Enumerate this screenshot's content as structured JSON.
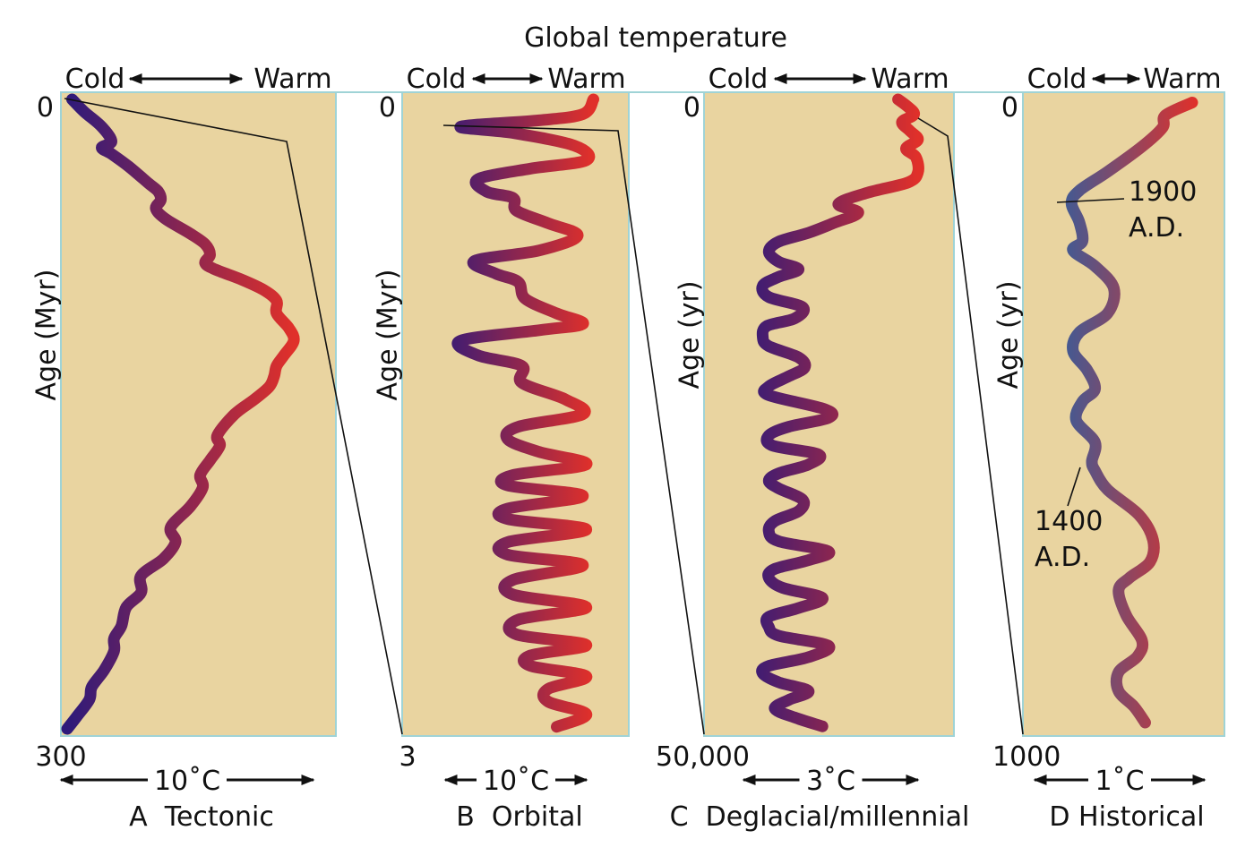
{
  "title": "Global temperature",
  "colors": {
    "panel_bg": "#E9D4A0",
    "panel_border": "#9FD3D6",
    "cold": "#2E1A7A",
    "warm": "#E0302A",
    "historical_cold": "#2F5FA0"
  },
  "chart_data": [
    {
      "type": "line",
      "panel": "A",
      "caption": "A  Tectonic",
      "cold_label": "Cold",
      "warm_label": "Warm",
      "scale_label": "10˚C",
      "ylabel": "Age (Myr)",
      "y_top_label": "0",
      "y_bottom_label": "300",
      "ylim": [
        0,
        300
      ],
      "x_range": "cold (0) to warm (1)",
      "points": [
        [
          0.02,
          0
        ],
        [
          0.07,
          6
        ],
        [
          0.14,
          13
        ],
        [
          0.18,
          20
        ],
        [
          0.14,
          23
        ],
        [
          0.18,
          26
        ],
        [
          0.25,
          32
        ],
        [
          0.33,
          40
        ],
        [
          0.37,
          44
        ],
        [
          0.38,
          48
        ],
        [
          0.36,
          52
        ],
        [
          0.4,
          57
        ],
        [
          0.5,
          64
        ],
        [
          0.56,
          69
        ],
        [
          0.58,
          74
        ],
        [
          0.56,
          78
        ],
        [
          0.6,
          81
        ],
        [
          0.71,
          86
        ],
        [
          0.8,
          91
        ],
        [
          0.85,
          96
        ],
        [
          0.85,
          102
        ],
        [
          0.9,
          109
        ],
        [
          0.92,
          115
        ],
        [
          0.88,
          122
        ],
        [
          0.85,
          127
        ],
        [
          0.84,
          132
        ],
        [
          0.82,
          137
        ],
        [
          0.76,
          143
        ],
        [
          0.68,
          150
        ],
        [
          0.61,
          160
        ],
        [
          0.62,
          165
        ],
        [
          0.58,
          172
        ],
        [
          0.54,
          179
        ],
        [
          0.55,
          185
        ],
        [
          0.5,
          194
        ],
        [
          0.42,
          204
        ],
        [
          0.44,
          211
        ],
        [
          0.39,
          219
        ],
        [
          0.3,
          227
        ],
        [
          0.3,
          235
        ],
        [
          0.24,
          242
        ],
        [
          0.22,
          251
        ],
        [
          0.19,
          257
        ],
        [
          0.19,
          263
        ],
        [
          0.15,
          272
        ],
        [
          0.1,
          280
        ],
        [
          0.09,
          286
        ],
        [
          0.04,
          294
        ],
        [
          0.0,
          300
        ]
      ]
    },
    {
      "type": "line",
      "panel": "B",
      "caption": "B  Orbital",
      "cold_label": "Cold",
      "warm_label": "Warm",
      "scale_label": "10˚C",
      "ylabel": "Age (Myr)",
      "y_top_label": "0",
      "y_bottom_label": "3",
      "ylim": [
        0,
        3
      ],
      "x_range": "cold (0) to warm (1)",
      "points": [
        [
          0.91,
          0
        ],
        [
          0.85,
          0.07
        ],
        [
          0.6,
          0.1
        ],
        [
          0.15,
          0.13
        ],
        [
          0.45,
          0.16
        ],
        [
          0.8,
          0.22
        ],
        [
          0.87,
          0.29
        ],
        [
          0.55,
          0.33
        ],
        [
          0.25,
          0.38
        ],
        [
          0.3,
          0.44
        ],
        [
          0.45,
          0.47
        ],
        [
          0.47,
          0.53
        ],
        [
          0.65,
          0.59
        ],
        [
          0.82,
          0.65
        ],
        [
          0.6,
          0.72
        ],
        [
          0.23,
          0.77
        ],
        [
          0.35,
          0.83
        ],
        [
          0.48,
          0.87
        ],
        [
          0.52,
          0.95
        ],
        [
          0.7,
          1.02
        ],
        [
          0.85,
          1.07
        ],
        [
          0.6,
          1.1
        ],
        [
          0.15,
          1.15
        ],
        [
          0.25,
          1.22
        ],
        [
          0.5,
          1.27
        ],
        [
          0.5,
          1.35
        ],
        [
          0.75,
          1.43
        ],
        [
          0.85,
          1.5
        ],
        [
          0.48,
          1.56
        ],
        [
          0.42,
          1.62
        ],
        [
          0.6,
          1.68
        ],
        [
          0.87,
          1.74
        ],
        [
          0.45,
          1.79
        ],
        [
          0.42,
          1.84
        ],
        [
          0.85,
          1.89
        ],
        [
          0.42,
          1.95
        ],
        [
          0.42,
          2.0
        ],
        [
          0.87,
          2.05
        ],
        [
          0.42,
          2.11
        ],
        [
          0.42,
          2.17
        ],
        [
          0.85,
          2.22
        ],
        [
          0.45,
          2.29
        ],
        [
          0.45,
          2.36
        ],
        [
          0.87,
          2.42
        ],
        [
          0.48,
          2.48
        ],
        [
          0.47,
          2.55
        ],
        [
          0.87,
          2.6
        ],
        [
          0.55,
          2.65
        ],
        [
          0.55,
          2.7
        ],
        [
          0.87,
          2.75
        ],
        [
          0.65,
          2.81
        ],
        [
          0.65,
          2.87
        ],
        [
          0.87,
          2.93
        ],
        [
          0.7,
          2.99
        ]
      ]
    },
    {
      "type": "line",
      "panel": "C",
      "caption": "C  Deglacial/millennial",
      "cold_label": "Cold",
      "warm_label": "Warm",
      "scale_label": "3˚C",
      "ylabel": "Age (yr)",
      "y_top_label": "0",
      "y_bottom_label": "50,000",
      "ylim": [
        0,
        50000
      ],
      "x_range": "cold (0) to warm (1)",
      "points": [
        [
          0.8,
          0
        ],
        [
          0.85,
          600
        ],
        [
          0.88,
          1200
        ],
        [
          0.82,
          1800
        ],
        [
          0.86,
          2500
        ],
        [
          0.9,
          3200
        ],
        [
          0.84,
          3900
        ],
        [
          0.89,
          4600
        ],
        [
          0.9,
          5800
        ],
        [
          0.85,
          6600
        ],
        [
          0.65,
          7400
        ],
        [
          0.5,
          8300
        ],
        [
          0.6,
          9000
        ],
        [
          0.48,
          9800
        ],
        [
          0.35,
          10600
        ],
        [
          0.2,
          11300
        ],
        [
          0.15,
          12100
        ],
        [
          0.2,
          12900
        ],
        [
          0.3,
          13500
        ],
        [
          0.2,
          14100
        ],
        [
          0.12,
          14800
        ],
        [
          0.15,
          15700
        ],
        [
          0.32,
          16500
        ],
        [
          0.28,
          17400
        ],
        [
          0.14,
          18000
        ],
        [
          0.12,
          18900
        ],
        [
          0.15,
          19600
        ],
        [
          0.3,
          20500
        ],
        [
          0.33,
          21300
        ],
        [
          0.25,
          22000
        ],
        [
          0.15,
          22800
        ],
        [
          0.15,
          23500
        ],
        [
          0.43,
          24600
        ],
        [
          0.45,
          25300
        ],
        [
          0.25,
          26000
        ],
        [
          0.15,
          26700
        ],
        [
          0.17,
          27500
        ],
        [
          0.4,
          28200
        ],
        [
          0.35,
          29000
        ],
        [
          0.2,
          29700
        ],
        [
          0.15,
          30300
        ],
        [
          0.2,
          30900
        ],
        [
          0.32,
          31800
        ],
        [
          0.3,
          32700
        ],
        [
          0.18,
          33500
        ],
        [
          0.15,
          34300
        ],
        [
          0.2,
          35100
        ],
        [
          0.45,
          35900
        ],
        [
          0.35,
          36600
        ],
        [
          0.18,
          37300
        ],
        [
          0.15,
          38000
        ],
        [
          0.22,
          38800
        ],
        [
          0.42,
          39600
        ],
        [
          0.3,
          40400
        ],
        [
          0.15,
          41100
        ],
        [
          0.15,
          41900
        ],
        [
          0.2,
          42600
        ],
        [
          0.45,
          43400
        ],
        [
          0.35,
          44300
        ],
        [
          0.15,
          45000
        ],
        [
          0.12,
          45600
        ],
        [
          0.2,
          46300
        ],
        [
          0.35,
          47000
        ],
        [
          0.25,
          47700
        ],
        [
          0.18,
          48400
        ],
        [
          0.28,
          49100
        ],
        [
          0.42,
          49800
        ]
      ]
    },
    {
      "type": "line",
      "panel": "D",
      "caption": "D Historical",
      "cold_label": "Cold",
      "warm_label": "Warm",
      "scale_label": "1˚C",
      "ylabel": "Age (yr)",
      "y_top_label": "0",
      "y_bottom_label": "1000",
      "ylim": [
        0,
        1000
      ],
      "x_range": "cold (0) to warm (1)",
      "annotations": [
        {
          "label_line1": "1900",
          "label_line2": "A.D.",
          "age": 165
        },
        {
          "label_line1": "1400",
          "label_line2": "A.D.",
          "age": 590
        }
      ],
      "points": [
        [
          0.92,
          5
        ],
        [
          0.75,
          25
        ],
        [
          0.73,
          45
        ],
        [
          0.6,
          75
        ],
        [
          0.38,
          115
        ],
        [
          0.2,
          145
        ],
        [
          0.15,
          165
        ],
        [
          0.2,
          195
        ],
        [
          0.22,
          225
        ],
        [
          0.16,
          240
        ],
        [
          0.3,
          265
        ],
        [
          0.42,
          300
        ],
        [
          0.38,
          340
        ],
        [
          0.2,
          370
        ],
        [
          0.16,
          400
        ],
        [
          0.25,
          430
        ],
        [
          0.3,
          460
        ],
        [
          0.22,
          480
        ],
        [
          0.18,
          510
        ],
        [
          0.3,
          545
        ],
        [
          0.28,
          575
        ],
        [
          0.3,
          590
        ],
        [
          0.38,
          620
        ],
        [
          0.58,
          660
        ],
        [
          0.67,
          700
        ],
        [
          0.65,
          735
        ],
        [
          0.52,
          760
        ],
        [
          0.45,
          780
        ],
        [
          0.5,
          820
        ],
        [
          0.6,
          860
        ],
        [
          0.57,
          885
        ],
        [
          0.45,
          910
        ],
        [
          0.45,
          940
        ],
        [
          0.55,
          965
        ],
        [
          0.62,
          990
        ]
      ]
    }
  ]
}
